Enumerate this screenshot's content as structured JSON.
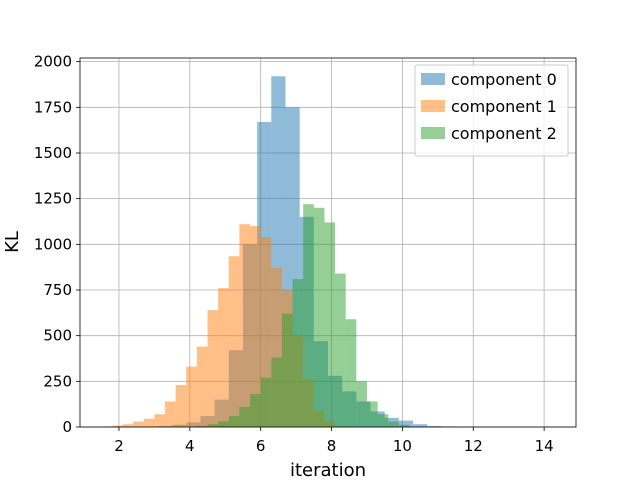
{
  "chart_data": {
    "type": "bar",
    "title": "",
    "xlabel": "iteration",
    "ylabel": "KL",
    "xlim": [
      0.9,
      14.9
    ],
    "ylim": [
      0,
      2020
    ],
    "xticks": [
      2,
      4,
      6,
      8,
      10,
      12,
      14
    ],
    "yticks": [
      0,
      250,
      500,
      750,
      1000,
      1250,
      1500,
      1750,
      2000
    ],
    "grid": true,
    "legend_position": "top-right",
    "bar_alpha": 0.5,
    "series": [
      {
        "name": "component 0",
        "color": "#1f77b4",
        "bin_edges": [
          2.3,
          2.7,
          3.1,
          3.5,
          3.9,
          4.3,
          4.7,
          5.1,
          5.5,
          5.9,
          6.3,
          6.7,
          7.1,
          7.5,
          7.9,
          8.3,
          8.7,
          9.1,
          9.5,
          9.9,
          10.3,
          10.7,
          11.1,
          11.5,
          11.9
        ],
        "counts": [
          1,
          2,
          5,
          12,
          25,
          60,
          150,
          420,
          1000,
          1670,
          1920,
          1750,
          1150,
          470,
          280,
          195,
          140,
          85,
          50,
          35,
          15,
          5,
          3,
          2
        ]
      },
      {
        "name": "component 1",
        "color": "#ff7f0e",
        "bin_edges": [
          1.5,
          1.8,
          2.1,
          2.4,
          2.7,
          3.0,
          3.3,
          3.6,
          3.9,
          4.2,
          4.5,
          4.8,
          5.1,
          5.4,
          5.7,
          6.0,
          6.3,
          6.6,
          6.9,
          7.2,
          7.5,
          7.8,
          8.1
        ],
        "counts": [
          3,
          8,
          15,
          30,
          45,
          70,
          140,
          230,
          330,
          440,
          640,
          760,
          935,
          1110,
          1100,
          1040,
          870,
          750,
          500,
          260,
          90,
          30,
          10
        ]
      },
      {
        "name": "component 2",
        "color": "#2ca02c",
        "bin_edges": [
          4.2,
          4.5,
          4.8,
          5.1,
          5.4,
          5.7,
          6.0,
          6.3,
          6.6,
          6.9,
          7.2,
          7.5,
          7.8,
          8.1,
          8.4,
          8.7,
          9.0,
          9.3,
          9.6,
          9.9,
          10.2
        ],
        "counts": [
          5,
          15,
          30,
          60,
          110,
          180,
          270,
          380,
          620,
          810,
          1220,
          1200,
          1120,
          840,
          590,
          250,
          140,
          70,
          30,
          12
        ]
      }
    ]
  }
}
